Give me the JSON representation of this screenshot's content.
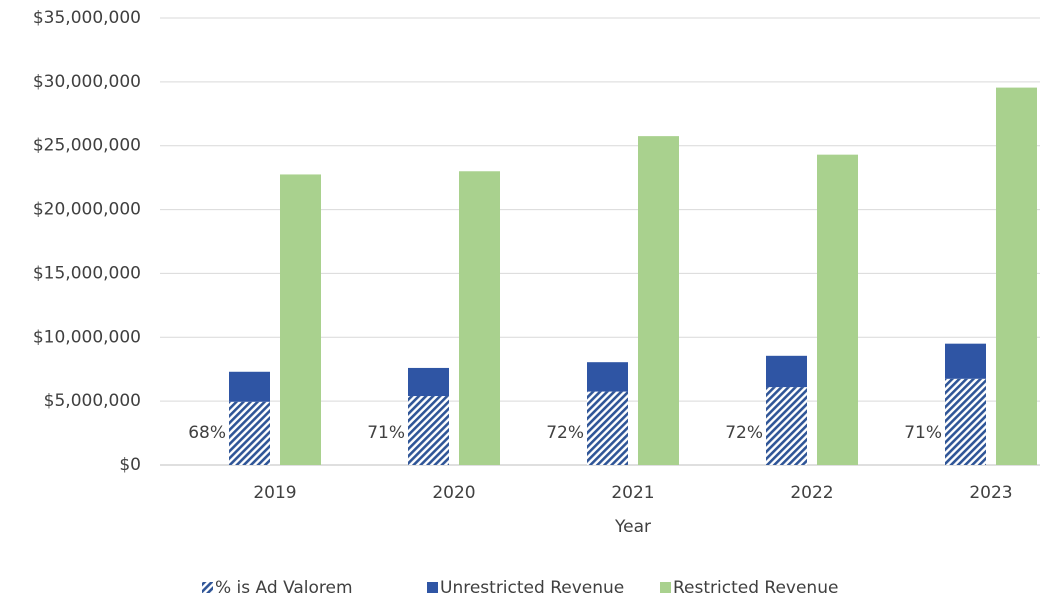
{
  "chart_data": {
    "type": "stacked_grouped_bar",
    "x_label": "Year",
    "categories": [
      "2019",
      "2020",
      "2021",
      "2022",
      "2023"
    ],
    "series": [
      {
        "name": "% is Ad Valorem",
        "color": "#2f5597",
        "pattern": "hatch",
        "stack": "unrestricted",
        "values": [
          4950000,
          5400000,
          5750000,
          6100000,
          6750000
        ]
      },
      {
        "name": "Unrestricted Revenue",
        "color": "#2f55a4",
        "stack": "unrestricted",
        "values": [
          2350000,
          2200000,
          2300000,
          2450000,
          2750000
        ]
      },
      {
        "name": "Restricted Revenue",
        "color": "#a9d18e",
        "stack": "restricted",
        "values": [
          22750000,
          23000000,
          25750000,
          24300000,
          29550000
        ]
      }
    ],
    "percent_labels": [
      "68%",
      "71%",
      "72%",
      "72%",
      "71%"
    ],
    "ylim": [
      0,
      35000000
    ],
    "yticks": [
      {
        "value": 0,
        "label": "$0"
      },
      {
        "value": 5000000,
        "label": "$5,000,000"
      },
      {
        "value": 10000000,
        "label": "$10,000,000"
      },
      {
        "value": 15000000,
        "label": "$15,000,000"
      },
      {
        "value": 20000000,
        "label": "$20,000,000"
      },
      {
        "value": 25000000,
        "label": "$25,000,000"
      },
      {
        "value": 30000000,
        "label": "$30,000,000"
      },
      {
        "value": 35000000,
        "label": "$35,000,000"
      }
    ],
    "grid": true,
    "legend": "bottom"
  }
}
